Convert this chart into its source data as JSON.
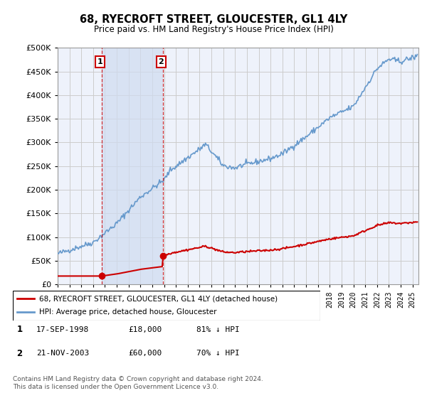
{
  "title": "68, RYECROFT STREET, GLOUCESTER, GL1 4LY",
  "subtitle": "Price paid vs. HM Land Registry's House Price Index (HPI)",
  "legend_line1": "68, RYECROFT STREET, GLOUCESTER, GL1 4LY (detached house)",
  "legend_line2": "HPI: Average price, detached house, Gloucester",
  "footnote": "Contains HM Land Registry data © Crown copyright and database right 2024.\nThis data is licensed under the Open Government Licence v3.0.",
  "sale1_label": "1",
  "sale1_date": "17-SEP-1998",
  "sale1_price": "£18,000",
  "sale1_hpi": "81% ↓ HPI",
  "sale1_year": 1998.72,
  "sale1_value": 18000,
  "sale2_label": "2",
  "sale2_date": "21-NOV-2003",
  "sale2_price": "£60,000",
  "sale2_hpi": "70% ↓ HPI",
  "sale2_year": 2003.89,
  "sale2_value": 60000,
  "ylim": [
    0,
    500000
  ],
  "xlim_start": 1995.0,
  "xlim_end": 2025.5,
  "price_line_color": "#cc0000",
  "hpi_line_color": "#6699cc",
  "vline_color": "#cc0000",
  "grid_color": "#cccccc",
  "background_color": "#ffffff",
  "plot_bg_color": "#eef2fb"
}
